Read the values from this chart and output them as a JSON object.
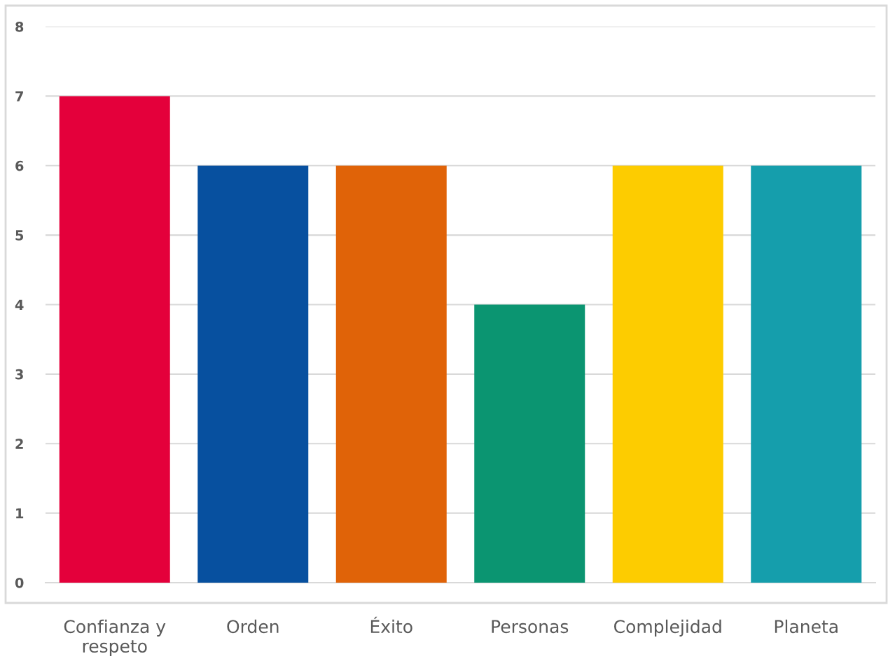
{
  "chart_data": {
    "type": "bar",
    "categories": [
      "Confianza y respeto",
      "Orden",
      "Éxito",
      "Personas",
      "Complejidad",
      "Planeta"
    ],
    "values": [
      7,
      6,
      6,
      4,
      6,
      6
    ],
    "colors": [
      "#e4003b",
      "#07509f",
      "#e06308",
      "#0b9571",
      "#fdcc00",
      "#159eac"
    ],
    "ylim": [
      0,
      8
    ],
    "yticks": [
      0,
      1,
      2,
      3,
      4,
      5,
      6,
      7,
      8
    ],
    "grid": "y",
    "legend": false
  }
}
